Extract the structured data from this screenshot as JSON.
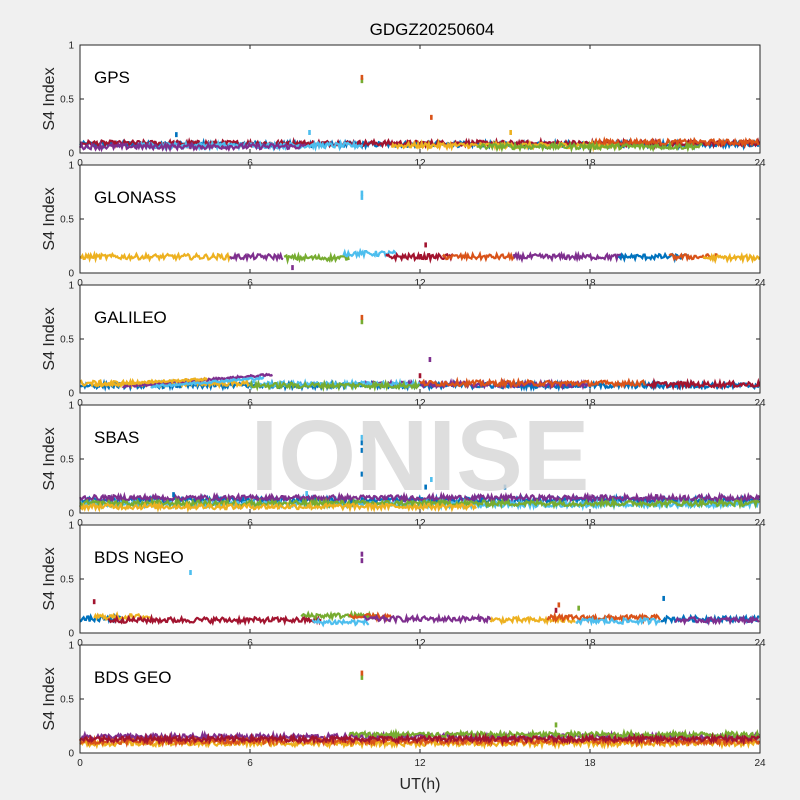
{
  "chart_data": {
    "type": "scatter",
    "title": "GDGZ20250604",
    "xlabel": "UT(h)",
    "ylabel": "S4 Index",
    "xlim": [
      0,
      24
    ],
    "ylim": [
      0,
      1
    ],
    "xticks": [
      0,
      6,
      12,
      18,
      24
    ],
    "xtick_labels": [
      "0",
      "6",
      "12",
      "18",
      "24"
    ],
    "yticks": [
      0,
      0.5,
      1
    ],
    "ytick_labels": [
      "0",
      "0.5",
      "1"
    ],
    "grid": false,
    "watermark": "IONISE",
    "colors": [
      "#0072bd",
      "#d95319",
      "#edb120",
      "#7e2f8e",
      "#77ac30",
      "#4dbeee",
      "#a2142f"
    ],
    "panels": [
      {
        "label": "GPS",
        "baseline": 0.08,
        "segments": [
          {
            "color": "#0072bd",
            "x": [
              0,
              24
            ],
            "level": 0.08
          },
          {
            "color": "#a2142f",
            "x": [
              0,
              24
            ],
            "level": 0.09
          },
          {
            "color": "#4dbeee",
            "x": [
              2,
              10
            ],
            "level": 0.07
          },
          {
            "color": "#edb120",
            "x": [
              11,
              19
            ],
            "level": 0.07
          },
          {
            "color": "#d95319",
            "x": [
              18,
              24
            ],
            "level": 0.1
          },
          {
            "color": "#7e2f8e",
            "x": [
              0,
              8
            ],
            "level": 0.06
          },
          {
            "color": "#77ac30",
            "x": [
              14,
              22
            ],
            "level": 0.06
          }
        ],
        "outliers": [
          {
            "x": 9.95,
            "y": 0.67,
            "color": "#77ac30"
          },
          {
            "x": 9.95,
            "y": 0.7,
            "color": "#d95319"
          },
          {
            "x": 12.4,
            "y": 0.33,
            "color": "#d95319"
          },
          {
            "x": 3.4,
            "y": 0.17,
            "color": "#0072bd"
          },
          {
            "x": 8.1,
            "y": 0.19,
            "color": "#4dbeee"
          },
          {
            "x": 15.2,
            "y": 0.19,
            "color": "#edb120"
          }
        ]
      },
      {
        "label": "GLONASS",
        "baseline": 0.15,
        "segments": [
          {
            "color": "#edb120",
            "x": [
              0,
              5.3
            ],
            "level": 0.15
          },
          {
            "color": "#7e2f8e",
            "x": [
              5.3,
              7.2
            ],
            "level": 0.15
          },
          {
            "color": "#77ac30",
            "x": [
              7.2,
              9.5
            ],
            "level": 0.14
          },
          {
            "color": "#4dbeee",
            "x": [
              9.3,
              11.2
            ],
            "level": 0.18
          },
          {
            "color": "#a2142f",
            "x": [
              10.8,
              13.2
            ],
            "level": 0.15
          },
          {
            "color": "#d95319",
            "x": [
              12.8,
              15.5
            ],
            "level": 0.15
          },
          {
            "color": "#7e2f8e",
            "x": [
              15.3,
              19.2
            ],
            "level": 0.15
          },
          {
            "color": "#0072bd",
            "x": [
              19,
              21.5
            ],
            "level": 0.15
          },
          {
            "color": "#d95319",
            "x": [
              20.8,
              22.5
            ],
            "level": 0.15
          },
          {
            "color": "#edb120",
            "x": [
              22,
              24
            ],
            "level": 0.14
          }
        ],
        "outliers": [
          {
            "x": 9.95,
            "y": 0.7,
            "color": "#4dbeee"
          },
          {
            "x": 9.95,
            "y": 0.74,
            "color": "#4dbeee"
          },
          {
            "x": 12.2,
            "y": 0.26,
            "color": "#a2142f"
          },
          {
            "x": 7.5,
            "y": 0.05,
            "color": "#7e2f8e"
          }
        ]
      },
      {
        "label": "GALILEO",
        "baseline": 0.07,
        "segments": [
          {
            "color": "#0072bd",
            "x": [
              0,
              24
            ],
            "level": 0.07
          },
          {
            "color": "#edb120",
            "x": [
              0,
              6
            ],
            "level": 0.09
          },
          {
            "color": "#7e2f8e",
            "x": [
              10,
              18
            ],
            "level": 0.08
          },
          {
            "color": "#4dbeee",
            "x": [
              6,
              12
            ],
            "level": 0.08
          },
          {
            "color": "#77ac30",
            "x": [
              6,
              12
            ],
            "level": 0.07
          },
          {
            "color": "#d95319",
            "x": [
              12,
              20
            ],
            "level": 0.09
          },
          {
            "color": "#a2142f",
            "x": [
              20,
              24
            ],
            "level": 0.08
          }
        ],
        "ramps": [
          {
            "color": "#7e2f8e",
            "x": [
              1.5,
              6.8
            ],
            "y": [
              0.06,
              0.17
            ]
          },
          {
            "color": "#4dbeee",
            "x": [
              2.5,
              6.5
            ],
            "y": [
              0.06,
              0.14
            ]
          },
          {
            "color": "#edb120",
            "x": [
              0.5,
              4.5
            ],
            "y": [
              0.07,
              0.13
            ]
          }
        ],
        "outliers": [
          {
            "x": 9.95,
            "y": 0.66,
            "color": "#77ac30"
          },
          {
            "x": 9.95,
            "y": 0.7,
            "color": "#d95319"
          },
          {
            "x": 12.35,
            "y": 0.31,
            "color": "#7e2f8e"
          },
          {
            "x": 12.0,
            "y": 0.16,
            "color": "#a2142f"
          }
        ]
      },
      {
        "label": "SBAS",
        "baseline": 0.1,
        "segments": [
          {
            "color": "#0072bd",
            "x": [
              0,
              24
            ],
            "level": 0.12
          },
          {
            "color": "#7e2f8e",
            "x": [
              0,
              24
            ],
            "level": 0.14
          },
          {
            "color": "#4dbeee",
            "x": [
              0,
              24
            ],
            "level": 0.08
          },
          {
            "color": "#77ac30",
            "x": [
              0,
              24
            ],
            "level": 0.09
          },
          {
            "color": "#edb120",
            "x": [
              0,
              14
            ],
            "level": 0.06
          }
        ],
        "outliers": [
          {
            "x": 9.95,
            "y": 0.7,
            "color": "#4dbeee"
          },
          {
            "x": 9.95,
            "y": 0.65,
            "color": "#0072bd"
          },
          {
            "x": 9.95,
            "y": 0.58,
            "color": "#0072bd"
          },
          {
            "x": 9.95,
            "y": 0.36,
            "color": "#0072bd"
          },
          {
            "x": 12.4,
            "y": 0.31,
            "color": "#4dbeee"
          },
          {
            "x": 12.2,
            "y": 0.24,
            "color": "#0072bd"
          },
          {
            "x": 15.0,
            "y": 0.24,
            "color": "#0072bd"
          },
          {
            "x": 3.3,
            "y": 0.17,
            "color": "#0072bd"
          },
          {
            "x": 8.0,
            "y": 0.18,
            "color": "#4dbeee"
          }
        ]
      },
      {
        "label": "BDS NGEO",
        "baseline": 0.13,
        "segments": [
          {
            "color": "#0072bd",
            "x": [
              0,
              1.5
            ],
            "level": 0.13
          },
          {
            "color": "#edb120",
            "x": [
              0.5,
              2.5
            ],
            "level": 0.15
          },
          {
            "color": "#a2142f",
            "x": [
              1,
              8.5
            ],
            "level": 0.12
          },
          {
            "color": "#77ac30",
            "x": [
              7.8,
              10.5
            ],
            "level": 0.16
          },
          {
            "color": "#4dbeee",
            "x": [
              8.2,
              10.2
            ],
            "level": 0.1
          },
          {
            "color": "#d95319",
            "x": [
              9.5,
              11
            ],
            "level": 0.15
          },
          {
            "color": "#7e2f8e",
            "x": [
              10,
              14.5
            ],
            "level": 0.13
          },
          {
            "color": "#edb120",
            "x": [
              14.5,
              17.5
            ],
            "level": 0.12
          },
          {
            "color": "#d95319",
            "x": [
              16.5,
              20.5
            ],
            "level": 0.14
          },
          {
            "color": "#4dbeee",
            "x": [
              17.5,
              20.5
            ],
            "level": 0.11
          },
          {
            "color": "#0072bd",
            "x": [
              20.5,
              24
            ],
            "level": 0.13
          },
          {
            "color": "#7e2f8e",
            "x": [
              21,
              24
            ],
            "level": 0.12
          }
        ],
        "outliers": [
          {
            "x": 9.95,
            "y": 0.67,
            "color": "#7e2f8e"
          },
          {
            "x": 9.95,
            "y": 0.73,
            "color": "#7e2f8e"
          },
          {
            "x": 3.9,
            "y": 0.56,
            "color": "#4dbeee"
          },
          {
            "x": 0.5,
            "y": 0.29,
            "color": "#a2142f"
          },
          {
            "x": 20.6,
            "y": 0.32,
            "color": "#0072bd"
          },
          {
            "x": 16.9,
            "y": 0.26,
            "color": "#d95319"
          },
          {
            "x": 17.6,
            "y": 0.23,
            "color": "#77ac30"
          },
          {
            "x": 16.8,
            "y": 0.21,
            "color": "#a2142f"
          }
        ]
      },
      {
        "label": "BDS GEO",
        "baseline": 0.12,
        "segments": [
          {
            "color": "#7e2f8e",
            "x": [
              0,
              24
            ],
            "level": 0.15
          },
          {
            "color": "#edb120",
            "x": [
              0,
              24
            ],
            "level": 0.09
          },
          {
            "color": "#d95319",
            "x": [
              0,
              24
            ],
            "level": 0.11
          },
          {
            "color": "#77ac30",
            "x": [
              9.5,
              24
            ],
            "level": 0.17
          },
          {
            "color": "#a2142f",
            "x": [
              0,
              24
            ],
            "level": 0.13
          }
        ],
        "outliers": [
          {
            "x": 9.95,
            "y": 0.7,
            "color": "#77ac30"
          },
          {
            "x": 9.95,
            "y": 0.74,
            "color": "#d95319"
          },
          {
            "x": 16.8,
            "y": 0.26,
            "color": "#77ac30"
          }
        ]
      }
    ]
  }
}
